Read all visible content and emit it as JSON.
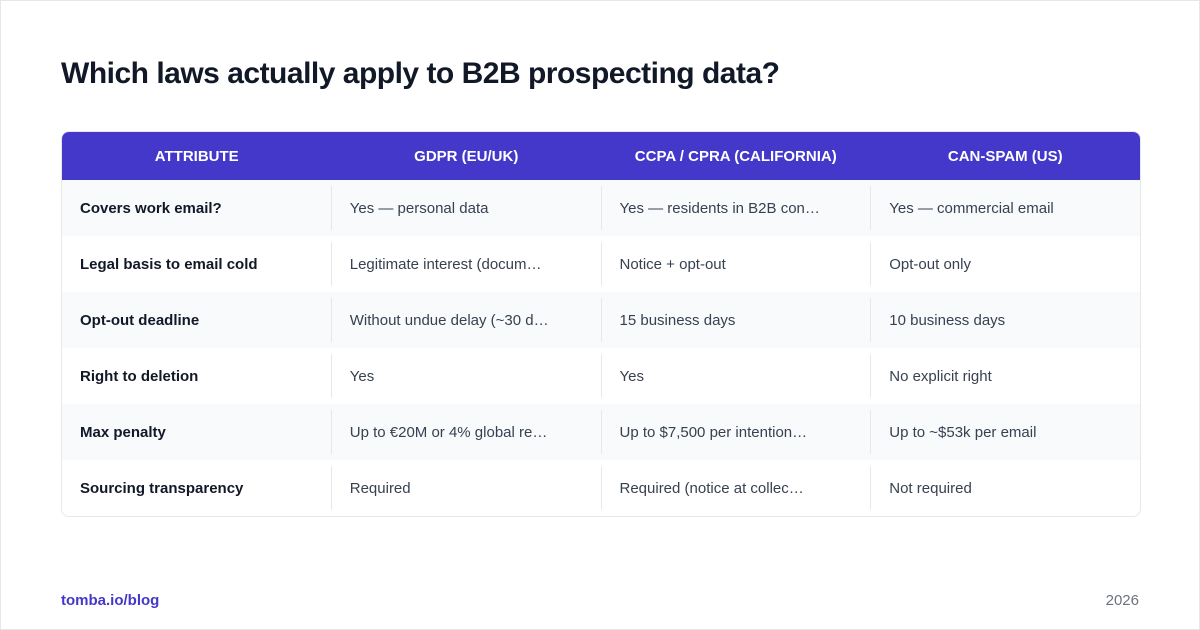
{
  "title": "Which laws actually apply to B2B prospecting data?",
  "table": {
    "header": [
      "ATTRIBUTE",
      "GDPR (EU/UK)",
      "CCPA / CPRA (CALIFORNIA)",
      "CAN-SPAM (US)"
    ],
    "rows": [
      [
        "Covers work email?",
        "Yes — personal data",
        "Yes — residents in B2B con…",
        "Yes — commercial email"
      ],
      [
        "Legal basis to email cold",
        "Legitimate interest (docum…",
        "Notice + opt-out",
        "Opt-out only"
      ],
      [
        "Opt-out deadline",
        "Without undue delay (~30 d…",
        "15 business days",
        "10 business days"
      ],
      [
        "Right to deletion",
        "Yes",
        "Yes",
        "No explicit right"
      ],
      [
        "Max penalty",
        "Up to €20M or 4% global re…",
        "Up to $7,500 per intention…",
        "Up to ~$53k per email"
      ],
      [
        "Sourcing transparency",
        "Required",
        "Required (notice at collec…",
        "Not required"
      ]
    ]
  },
  "footer": {
    "source": "tomba.io/blog",
    "year": "2026"
  }
}
